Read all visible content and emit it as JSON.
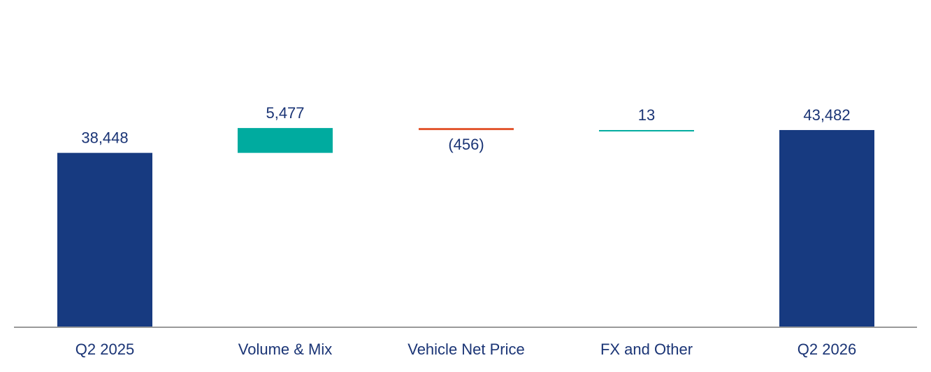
{
  "chart_data": {
    "type": "bar",
    "subtype": "waterfall",
    "categories": [
      "Q2 2025",
      "Volume & Mix",
      "Vehicle Net Price",
      "FX and Other",
      "Q2 2026"
    ],
    "values": [
      38448,
      5477,
      -456,
      13,
      43482
    ],
    "kinds": [
      "total",
      "delta",
      "delta",
      "delta",
      "total"
    ],
    "value_labels": [
      "38,448",
      "5,477",
      "(456)",
      "13",
      "43,482"
    ],
    "title": "",
    "xlabel": "",
    "ylabel": "",
    "ylim": [
      0,
      72000
    ],
    "grid": false,
    "colors": {
      "total": "#173a80",
      "increase": "#00ab9f",
      "decrease": "#e2552d",
      "text": "#1a3475",
      "axis": "#9a9a9a"
    }
  }
}
